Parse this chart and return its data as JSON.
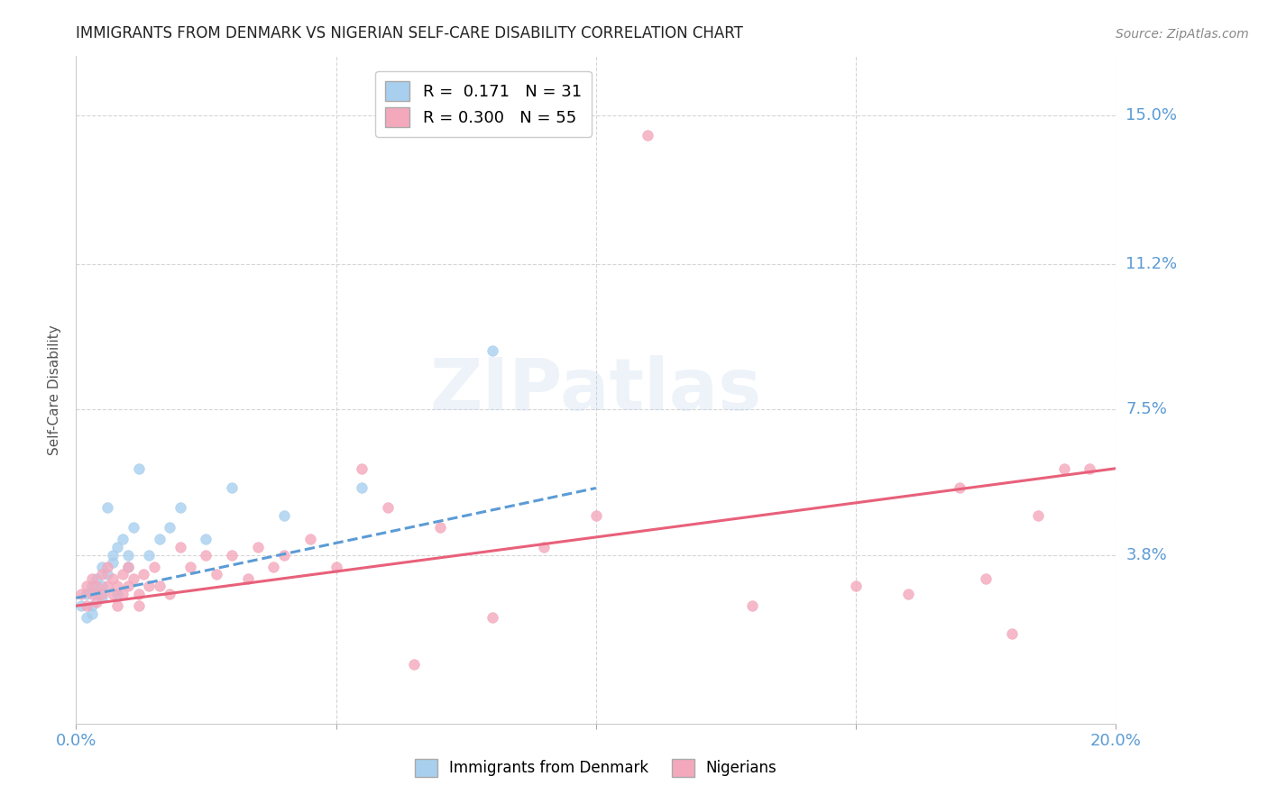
{
  "title": "IMMIGRANTS FROM DENMARK VS NIGERIAN SELF-CARE DISABILITY CORRELATION CHART",
  "source": "Source: ZipAtlas.com",
  "ylabel": "Self-Care Disability",
  "ytick_labels": [
    "15.0%",
    "11.2%",
    "7.5%",
    "3.8%"
  ],
  "ytick_values": [
    0.15,
    0.112,
    0.075,
    0.038
  ],
  "xlim": [
    0.0,
    0.2
  ],
  "ylim": [
    -0.005,
    0.165
  ],
  "color_denmark": "#A8CFEE",
  "color_nigeria": "#F4A8BC",
  "color_denmark_line": "#5B9BD5",
  "color_nigeria_line": "#E8607A",
  "color_axis_labels": "#5B9BD5",
  "background_color": "#FFFFFF",
  "denmark_x": [
    0.001,
    0.002,
    0.002,
    0.003,
    0.003,
    0.003,
    0.004,
    0.004,
    0.005,
    0.005,
    0.005,
    0.006,
    0.006,
    0.007,
    0.007,
    0.008,
    0.008,
    0.009,
    0.01,
    0.01,
    0.011,
    0.012,
    0.014,
    0.016,
    0.018,
    0.02,
    0.025,
    0.03,
    0.04,
    0.055,
    0.08
  ],
  "denmark_y": [
    0.025,
    0.028,
    0.022,
    0.03,
    0.025,
    0.023,
    0.032,
    0.028,
    0.035,
    0.03,
    0.027,
    0.033,
    0.05,
    0.038,
    0.036,
    0.04,
    0.028,
    0.042,
    0.035,
    0.038,
    0.045,
    0.06,
    0.038,
    0.042,
    0.045,
    0.05,
    0.042,
    0.055,
    0.048,
    0.055,
    0.09
  ],
  "nigeria_x": [
    0.001,
    0.002,
    0.002,
    0.003,
    0.003,
    0.004,
    0.004,
    0.005,
    0.005,
    0.006,
    0.006,
    0.007,
    0.007,
    0.008,
    0.008,
    0.009,
    0.009,
    0.01,
    0.01,
    0.011,
    0.012,
    0.012,
    0.013,
    0.014,
    0.015,
    0.016,
    0.018,
    0.02,
    0.022,
    0.025,
    0.027,
    0.03,
    0.033,
    0.035,
    0.038,
    0.04,
    0.045,
    0.05,
    0.055,
    0.06,
    0.065,
    0.07,
    0.08,
    0.09,
    0.1,
    0.11,
    0.13,
    0.15,
    0.16,
    0.17,
    0.175,
    0.18,
    0.185,
    0.19,
    0.195
  ],
  "nigeria_y": [
    0.028,
    0.03,
    0.025,
    0.028,
    0.032,
    0.026,
    0.03,
    0.028,
    0.033,
    0.03,
    0.035,
    0.028,
    0.032,
    0.03,
    0.025,
    0.033,
    0.028,
    0.03,
    0.035,
    0.032,
    0.028,
    0.025,
    0.033,
    0.03,
    0.035,
    0.03,
    0.028,
    0.04,
    0.035,
    0.038,
    0.033,
    0.038,
    0.032,
    0.04,
    0.035,
    0.038,
    0.042,
    0.035,
    0.06,
    0.05,
    0.01,
    0.045,
    0.022,
    0.04,
    0.048,
    0.145,
    0.025,
    0.03,
    0.028,
    0.055,
    0.032,
    0.018,
    0.048,
    0.06,
    0.06
  ],
  "dk_line_x": [
    0.0,
    0.1
  ],
  "dk_line_y": [
    0.027,
    0.055
  ],
  "ng_line_x": [
    0.0,
    0.2
  ],
  "ng_line_y": [
    0.025,
    0.06
  ]
}
